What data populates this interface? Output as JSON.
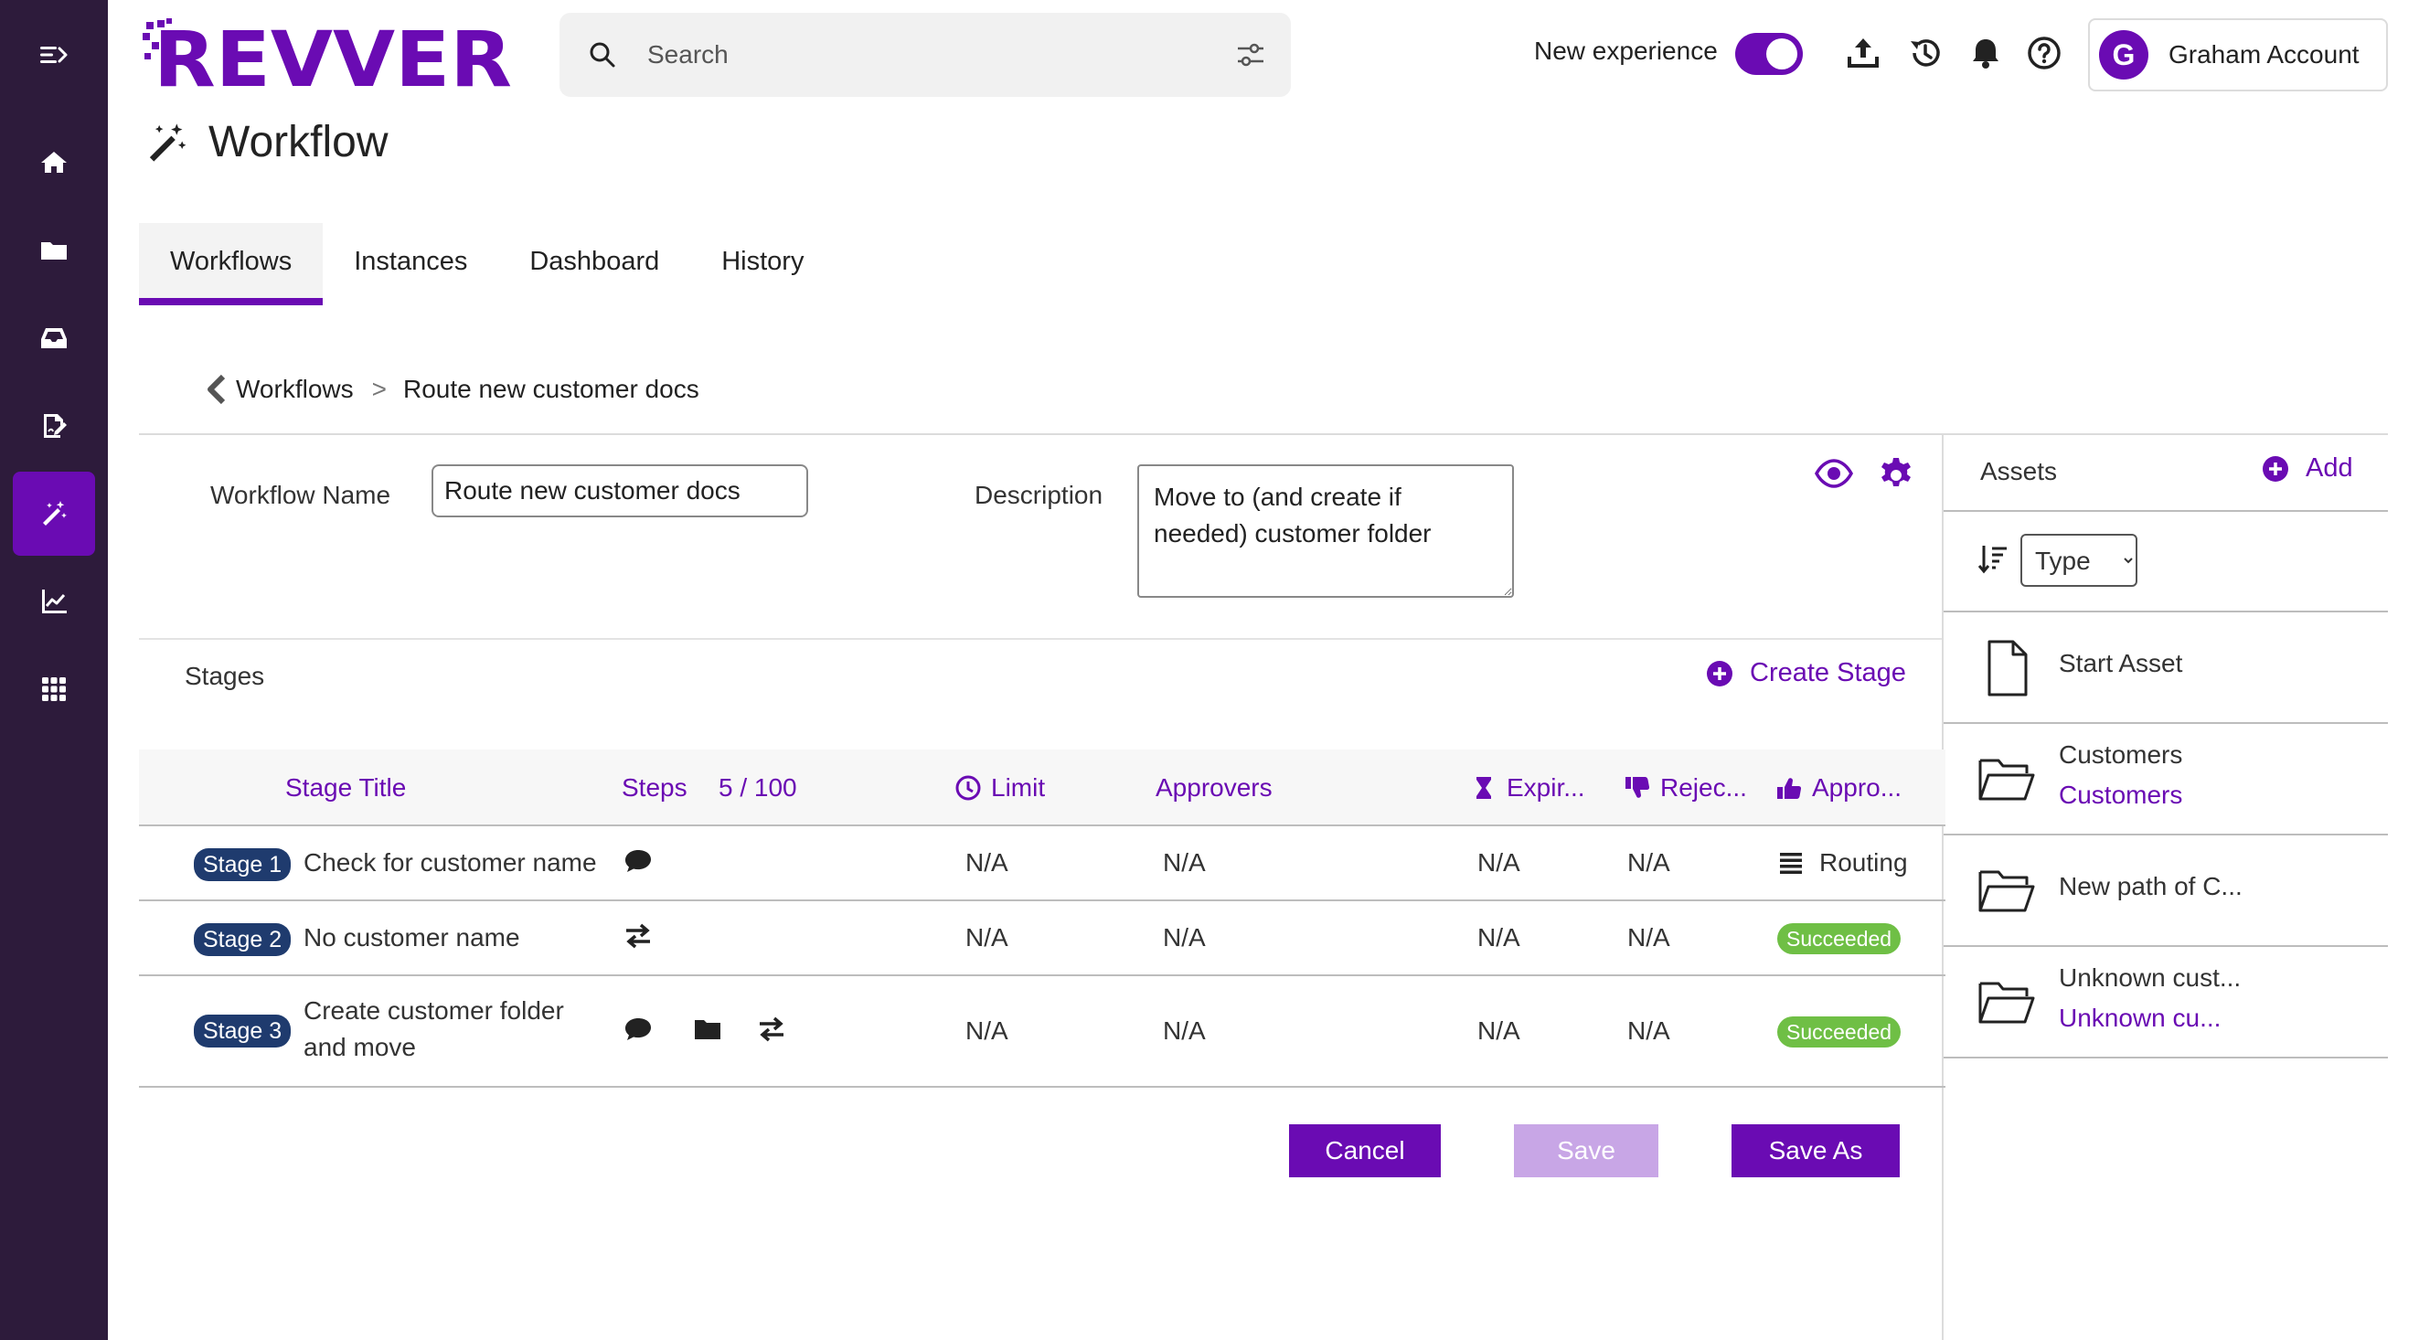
{
  "app": {
    "brand": "REVVER",
    "brand_color": "#6a0bb3",
    "rail_color": "#2d1b3b"
  },
  "nav_rail": {
    "items": [
      {
        "icon": "menu-expand-icon"
      },
      {
        "icon": "home-icon"
      },
      {
        "icon": "folder-icon"
      },
      {
        "icon": "inbox-icon"
      },
      {
        "icon": "signature-icon"
      },
      {
        "icon": "workflow-wand-icon",
        "active": true
      },
      {
        "icon": "analytics-icon"
      },
      {
        "icon": "apps-grid-icon"
      }
    ]
  },
  "topbar": {
    "search_placeholder": "Search",
    "new_experience_label": "New experience",
    "new_experience_on": true,
    "icons": [
      "upload-icon",
      "history-icon",
      "bell-icon",
      "help-icon"
    ],
    "account": {
      "initial": "G",
      "name": "Graham Account"
    }
  },
  "page": {
    "title": "Workflow",
    "tabs": [
      {
        "label": "Workflows",
        "active": true
      },
      {
        "label": "Instances"
      },
      {
        "label": "Dashboard"
      },
      {
        "label": "History"
      }
    ]
  },
  "breadcrumb": {
    "parent": "Workflows",
    "separator": ">",
    "current": "Route new customer docs"
  },
  "form": {
    "name_label": "Workflow Name",
    "name_value": "Route new customer docs",
    "description_label": "Description",
    "description_value": "Move to (and create if needed) customer folder"
  },
  "stages": {
    "label": "Stages",
    "create_label": "Create Stage",
    "headers": {
      "stage_title": "Stage Title",
      "steps": "Steps",
      "steps_count": "5 / 100",
      "limit": "Limit",
      "approvers": "Approvers",
      "expiration": "Expir...",
      "rejection": "Rejec...",
      "approval": "Appro..."
    },
    "rows": [
      {
        "badge": "Stage 1",
        "title": "Check for customer name",
        "steps": [
          "comment-icon"
        ],
        "limit": "N/A",
        "approvers": "N/A",
        "expiration": "N/A",
        "rejection": "N/A",
        "approval": "Routing"
      },
      {
        "badge": "Stage 2",
        "title": "No customer name",
        "steps": [
          "transfer-icon"
        ],
        "limit": "N/A",
        "approvers": "N/A",
        "expiration": "N/A",
        "rejection": "N/A",
        "approval": "Succeeded"
      },
      {
        "badge": "Stage 3",
        "title_line1": "Create customer folder",
        "title_line2": "and move",
        "steps": [
          "comment-icon",
          "folder-icon",
          "transfer-icon"
        ],
        "limit": "N/A",
        "approvers": "N/A",
        "expiration": "N/A",
        "rejection": "N/A",
        "approval": "Succeeded"
      }
    ],
    "status_color": "#6fbf45",
    "badge_color": "#1f3b6e"
  },
  "actions": {
    "cancel": "Cancel",
    "save": "Save",
    "save_as": "Save As"
  },
  "assets": {
    "title": "Assets",
    "add_label": "Add",
    "sort_select": "Type",
    "items": [
      {
        "icon": "file-icon",
        "name": "Start Asset",
        "sub": ""
      },
      {
        "icon": "folder-open-icon",
        "name": "Customers",
        "sub": "Customers"
      },
      {
        "icon": "folder-open-icon",
        "name": "New path of C...",
        "sub": ""
      },
      {
        "icon": "folder-open-icon",
        "name": "Unknown cust...",
        "sub": "Unknown cu..."
      }
    ]
  }
}
